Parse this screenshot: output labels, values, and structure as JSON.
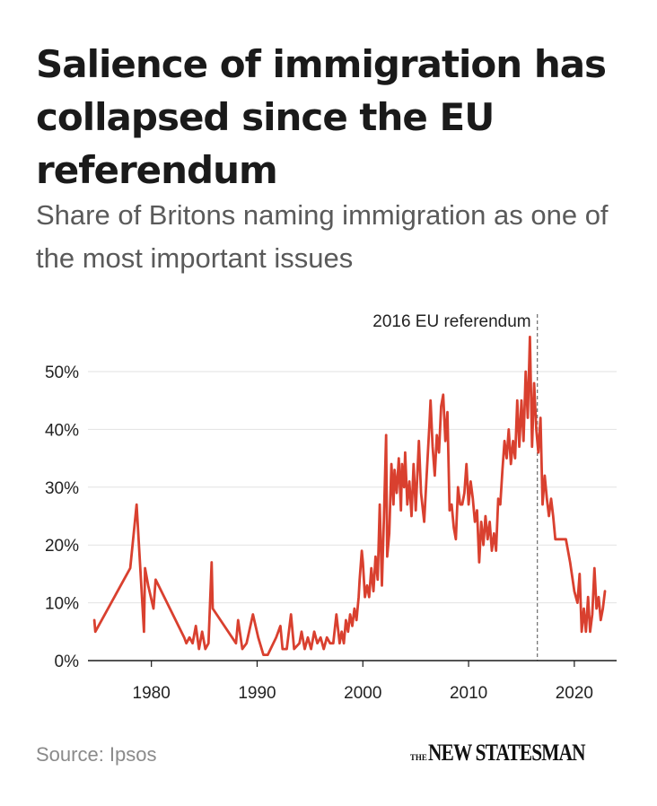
{
  "header": {
    "title": "Salience of immigration has collapsed since the EU referendum",
    "subtitle": "Share of Britons naming immigration as one of the most important issues"
  },
  "footer": {
    "source": "Source: Ipsos",
    "logo_small": "THE",
    "logo_name": "NEW STATESMAN"
  },
  "colors": {
    "line": "#d9402f",
    "grid": "#e2e2e2",
    "axis": "#1a1a1a",
    "annotation": "#777777"
  },
  "chart_data": {
    "type": "line",
    "title": "Salience of immigration has collapsed since the EU referendum",
    "subtitle": "Share of Britons naming immigration as one of the most important issues",
    "xlabel": "",
    "ylabel": "",
    "xlim": [
      1974,
      2024
    ],
    "ylim": [
      0,
      55
    ],
    "x_ticks": [
      1980,
      1990,
      2000,
      2010,
      2020
    ],
    "x_tick_labels": [
      "1980",
      "1990",
      "2000",
      "2010",
      "2020"
    ],
    "y_ticks": [
      0,
      10,
      20,
      30,
      40,
      50
    ],
    "y_tick_labels": [
      "0%",
      "10%",
      "20%",
      "30%",
      "40%",
      "50%"
    ],
    "grid": "horizontal",
    "annotations": [
      {
        "x": 2016.5,
        "label": "2016 EU referendum",
        "style": "dashed vertical line"
      }
    ],
    "series": [
      {
        "values": [
          [
            1974.6,
            7
          ],
          [
            1974.7,
            5
          ],
          [
            1978.0,
            16
          ],
          [
            1978.6,
            27
          ],
          [
            1979.3,
            5
          ],
          [
            1979.4,
            16
          ],
          [
            1979.7,
            13
          ],
          [
            1980.2,
            9
          ],
          [
            1980.4,
            14
          ],
          [
            1983.1,
            4
          ],
          [
            1983.3,
            3
          ],
          [
            1983.6,
            4
          ],
          [
            1983.9,
            3
          ],
          [
            1984.2,
            6
          ],
          [
            1984.5,
            2
          ],
          [
            1984.8,
            5
          ],
          [
            1985.1,
            2
          ],
          [
            1985.4,
            3
          ],
          [
            1985.7,
            17
          ],
          [
            1985.8,
            9
          ],
          [
            1988.0,
            3
          ],
          [
            1988.2,
            7
          ],
          [
            1988.6,
            2
          ],
          [
            1989.0,
            3
          ],
          [
            1989.6,
            8
          ],
          [
            1990.1,
            4
          ],
          [
            1990.6,
            1
          ],
          [
            1991.0,
            1
          ],
          [
            1991.8,
            4
          ],
          [
            1992.2,
            6
          ],
          [
            1992.4,
            2
          ],
          [
            1992.8,
            2
          ],
          [
            1993.2,
            8
          ],
          [
            1993.5,
            2
          ],
          [
            1994.0,
            3
          ],
          [
            1994.2,
            5
          ],
          [
            1994.5,
            2
          ],
          [
            1994.8,
            4
          ],
          [
            1995.1,
            2
          ],
          [
            1995.4,
            5
          ],
          [
            1995.7,
            3
          ],
          [
            1996.0,
            4
          ],
          [
            1996.3,
            2
          ],
          [
            1996.6,
            4
          ],
          [
            1996.9,
            3
          ],
          [
            1997.2,
            3
          ],
          [
            1997.5,
            8
          ],
          [
            1997.8,
            3
          ],
          [
            1998.0,
            5
          ],
          [
            1998.2,
            3
          ],
          [
            1998.4,
            7
          ],
          [
            1998.6,
            5
          ],
          [
            1998.8,
            8
          ],
          [
            1999.0,
            6
          ],
          [
            1999.2,
            9
          ],
          [
            1999.4,
            7
          ],
          [
            1999.6,
            11
          ],
          [
            1999.7,
            14
          ],
          [
            1999.9,
            19
          ],
          [
            2000.0,
            17
          ],
          [
            2000.2,
            11
          ],
          [
            2000.4,
            13
          ],
          [
            2000.6,
            11
          ],
          [
            2000.8,
            16
          ],
          [
            2001.0,
            12
          ],
          [
            2001.2,
            18
          ],
          [
            2001.4,
            14
          ],
          [
            2001.6,
            27
          ],
          [
            2001.8,
            13
          ],
          [
            2002.0,
            25
          ],
          [
            2002.2,
            39
          ],
          [
            2002.3,
            18
          ],
          [
            2002.5,
            22
          ],
          [
            2002.7,
            34
          ],
          [
            2002.9,
            27
          ],
          [
            2003.0,
            33
          ],
          [
            2003.2,
            29
          ],
          [
            2003.4,
            35
          ],
          [
            2003.6,
            26
          ],
          [
            2003.7,
            34
          ],
          [
            2003.9,
            30
          ],
          [
            2004.0,
            36
          ],
          [
            2004.2,
            27
          ],
          [
            2004.4,
            31
          ],
          [
            2004.6,
            25
          ],
          [
            2004.8,
            34
          ],
          [
            2005.0,
            26
          ],
          [
            2005.3,
            38
          ],
          [
            2005.5,
            29
          ],
          [
            2005.8,
            24
          ],
          [
            2006.0,
            31
          ],
          [
            2006.3,
            41
          ],
          [
            2006.4,
            45
          ],
          [
            2006.6,
            37
          ],
          [
            2006.8,
            32
          ],
          [
            2007.0,
            39
          ],
          [
            2007.2,
            36
          ],
          [
            2007.4,
            44
          ],
          [
            2007.6,
            46
          ],
          [
            2007.8,
            38
          ],
          [
            2008.0,
            43
          ],
          [
            2008.2,
            26
          ],
          [
            2008.4,
            27
          ],
          [
            2008.6,
            23
          ],
          [
            2008.8,
            21
          ],
          [
            2009.0,
            30
          ],
          [
            2009.2,
            27
          ],
          [
            2009.4,
            27
          ],
          [
            2009.6,
            29
          ],
          [
            2009.8,
            34
          ],
          [
            2010.0,
            27
          ],
          [
            2010.2,
            31
          ],
          [
            2010.4,
            28
          ],
          [
            2010.6,
            24
          ],
          [
            2010.8,
            26
          ],
          [
            2011.0,
            17
          ],
          [
            2011.2,
            24
          ],
          [
            2011.4,
            20
          ],
          [
            2011.6,
            25
          ],
          [
            2011.8,
            21
          ],
          [
            2012.0,
            24
          ],
          [
            2012.2,
            19
          ],
          [
            2012.4,
            22
          ],
          [
            2012.6,
            19
          ],
          [
            2012.8,
            28
          ],
          [
            2013.0,
            27
          ],
          [
            2013.2,
            33
          ],
          [
            2013.4,
            38
          ],
          [
            2013.6,
            35
          ],
          [
            2013.8,
            40
          ],
          [
            2014.0,
            34
          ],
          [
            2014.2,
            38
          ],
          [
            2014.4,
            35
          ],
          [
            2014.6,
            45
          ],
          [
            2014.8,
            37
          ],
          [
            2015.0,
            45
          ],
          [
            2015.2,
            38
          ],
          [
            2015.4,
            50
          ],
          [
            2015.6,
            42
          ],
          [
            2015.8,
            56
          ],
          [
            2016.0,
            37
          ],
          [
            2016.2,
            48
          ],
          [
            2016.4,
            40
          ],
          [
            2016.6,
            36
          ],
          [
            2016.8,
            42
          ],
          [
            2017.0,
            27
          ],
          [
            2017.2,
            32
          ],
          [
            2017.4,
            28
          ],
          [
            2017.6,
            25
          ],
          [
            2017.8,
            28
          ],
          [
            2018.0,
            25
          ],
          [
            2018.2,
            21
          ],
          [
            2019.2,
            21
          ],
          [
            2019.6,
            17
          ],
          [
            2020.0,
            12
          ],
          [
            2020.3,
            10
          ],
          [
            2020.5,
            15
          ],
          [
            2020.7,
            5
          ],
          [
            2020.9,
            9
          ],
          [
            2021.1,
            5
          ],
          [
            2021.3,
            11
          ],
          [
            2021.5,
            5
          ],
          [
            2021.7,
            8
          ],
          [
            2021.9,
            16
          ],
          [
            2022.1,
            9
          ],
          [
            2022.3,
            11
          ],
          [
            2022.5,
            7
          ],
          [
            2022.7,
            9
          ],
          [
            2022.9,
            12
          ]
        ]
      }
    ]
  }
}
